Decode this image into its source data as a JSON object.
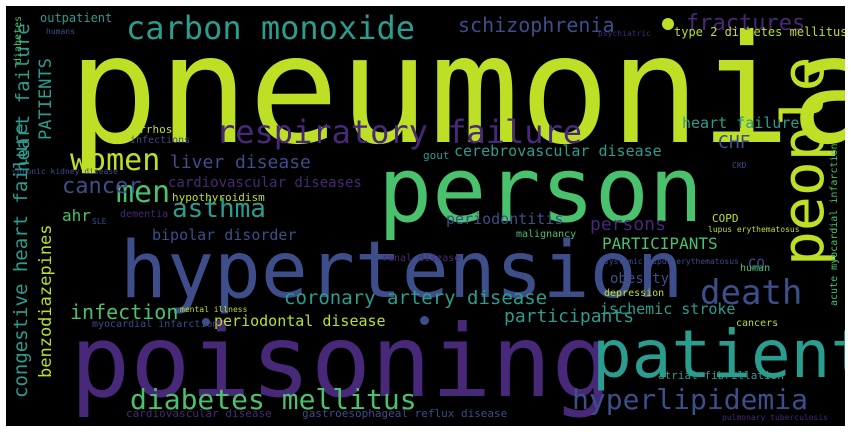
{
  "colors": {
    "background": "#000000",
    "lime": "#bddf26",
    "green": "#4ac16d",
    "teal": "#2a9d8f",
    "slate": "#3d4e8a",
    "purple": "#482878",
    "cyan": "#22a884"
  },
  "words": {
    "pneumonia": "pneumonia",
    "person": "person",
    "hypertension": "hypertension",
    "poisoning": "poisoning",
    "patient": "patient",
    "people": "people",
    "carbon_monoxide": "carbon monoxide",
    "respiratory_failure": "respiratory failure",
    "women": "women",
    "men": "men",
    "death": "death",
    "asthma": "asthma",
    "cancer": "cancer",
    "hyperlipidemia": "hyperlipidemia",
    "diabetes_mellitus": "diabetes mellitus",
    "schizophrenia": "schizophrenia",
    "fractures": "fractures",
    "liver_disease": "liver disease",
    "cardiovascular_diseases": "cardiovascular diseases",
    "cerebrovascular_disease": "cerebrovascular disease",
    "coronary_artery_disease": "coronary artery disease",
    "participants_upper": "PARTICIPANTS",
    "participants": "participants",
    "periodontal_disease": "periodontal disease",
    "infection": "infection",
    "congestive_heart_failure": "congestive heart failure",
    "benzodiazepines": "benzodiazepines",
    "patients_upper": "PATIENTS",
    "heart_failure_vertical": "heart failure",
    "heart_failure": "heart failure",
    "chf": "CHF",
    "ahr": "ahr",
    "bipolar_disorder": "bipolar disorder",
    "periodontitis": "periodontitis",
    "persons": "persons",
    "obesity": "obesity",
    "ischemic_stroke": "ischemic stroke",
    "cirrhosis": "cirrhosis",
    "infections": "infections",
    "gout": "gout",
    "hypothyroidism": "hypothyroidism",
    "dementia": "dementia",
    "copd": "COPD",
    "co": "CO",
    "human": "human",
    "malignancy": "malignancy",
    "renal_disease": "renal disease",
    "depression": "depression",
    "cancers": "cancers",
    "atrial_fibrillation": "atrial fibrillation",
    "myocardial_infarction": "myocardial infarction",
    "mental_illness": "mental illness",
    "cardiovascular_disease": "cardiovascular disease",
    "gastroesophageal_reflux_disease": "gastroesophageal reflux disease",
    "pulmonary_tuberculosis": "pulmonary tuberculosis",
    "outpatient": "outpatient",
    "humans": "humans",
    "diabetes": "diabetes",
    "psychiatric": "psychiatric",
    "type2_diabetes_mellitus": "type 2 diabetes mellitus",
    "acute_myocardial_infarction": "acute myocardial infarction",
    "lupus_erythematosus": "lupus erythematosus",
    "systemic_lupus_erythematosus": "systemic lupus erythematosus",
    "ckd": "CKD",
    "sle": "SLE",
    "chronic_kidney_disease": "chronic kidney disease"
  }
}
